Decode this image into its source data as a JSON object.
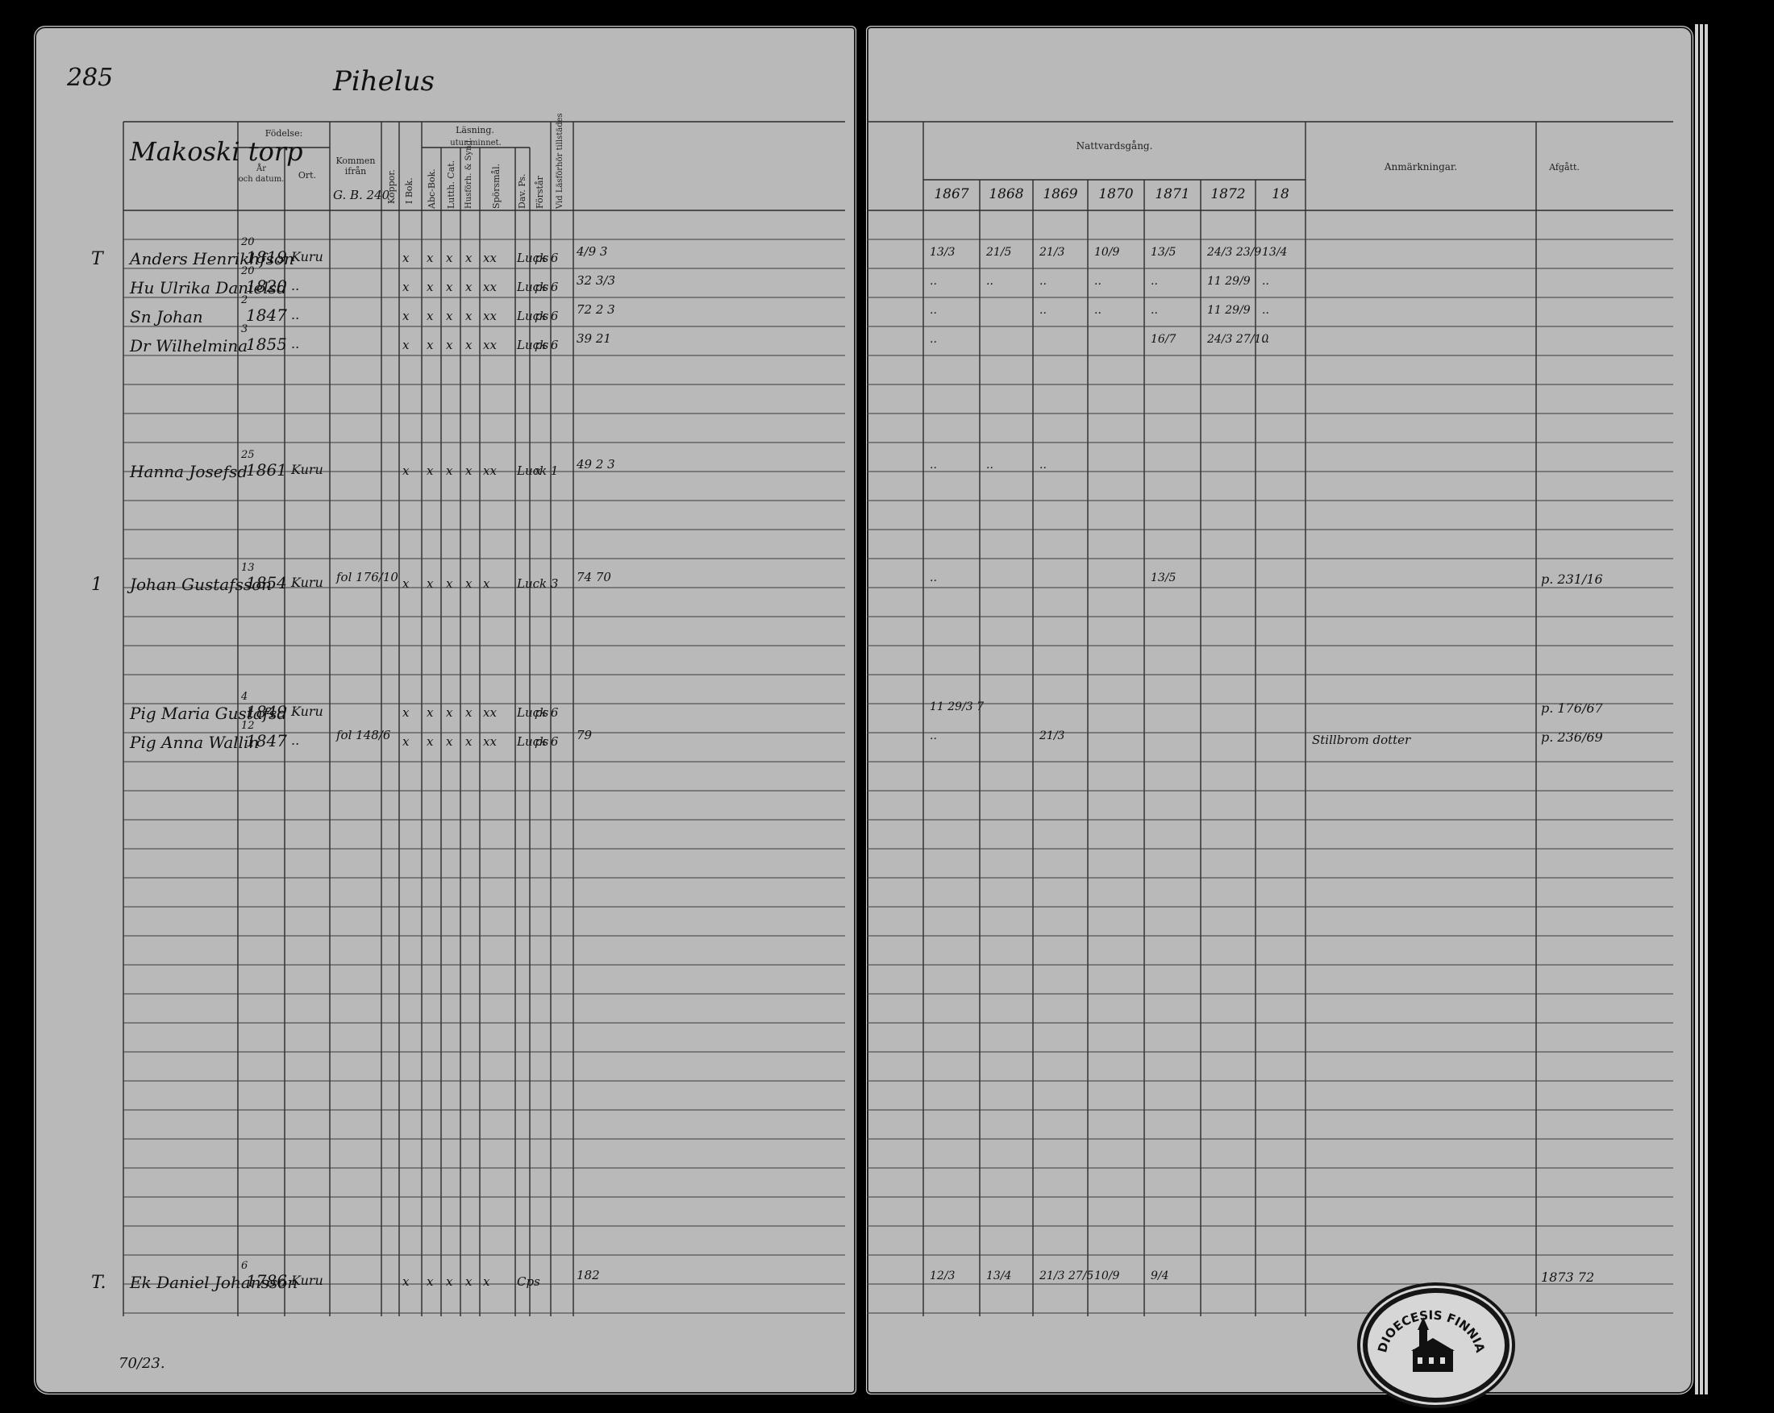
{
  "left_page": {
    "page_number": "285",
    "parish": "Pihelus",
    "place": "Makoski torp",
    "headers": {
      "fodelse": "Födelse:",
      "ar_datum": "År\noch datum.",
      "ort": "Ort.",
      "kommen": "Kommen ifrån",
      "kommen_note": "G. B. 240",
      "koppor": "Koppor.",
      "lasning": "Läsning.",
      "utur_minnet": "utur minnet.",
      "i_bok": "I Bok.",
      "abc_bok": "Abc-Bok.",
      "lutth_cat": "Lutth. Cat.",
      "husfoll": "Husförh. & Synd.",
      "sporsmal": "Spörsmål.",
      "dav_ps": "Dav. Ps.",
      "forstar": "Förstår",
      "vid_lasforhor": "Vid Läsförhör tillstädes"
    },
    "rows": [
      {
        "mark": "T",
        "name": "Anders Henrikhfson",
        "birth_day": "20",
        "birth_year": "1819",
        "place": "Kuru",
        "vals": [
          "x",
          "x",
          "x",
          "x",
          "xx",
          "Luck 6",
          "ps"
        ],
        "attend": "4/9 3"
      },
      {
        "mark": "",
        "name": "Hu Ulrika Danielsd",
        "birth_day": "20",
        "birth_year": "1820",
        "place": "..",
        "vals": [
          "x",
          "x",
          "x",
          "x",
          "xx",
          "Luck 6",
          "ps"
        ],
        "attend": "32 3/3"
      },
      {
        "mark": "",
        "name": "Sn Johan",
        "birth_day": "2",
        "birth_year": "1847",
        "place": "..",
        "vals": [
          "x",
          "x",
          "x",
          "x",
          "xx",
          "Luck 6",
          "ps"
        ],
        "attend": "72 2 3"
      },
      {
        "mark": "",
        "name": "Dr Wilhelmina",
        "birth_day": "3",
        "birth_year": "1855",
        "place": "..",
        "vals": [
          "x",
          "x",
          "x",
          "x",
          "xx",
          "Luck 6",
          "ps"
        ],
        "attend": "39 21"
      },
      {
        "mark": "",
        "name": "Hanna Josefsd",
        "birth_day": "25",
        "birth_year": "1861",
        "place": "Kuru",
        "vals": [
          "x",
          "x",
          "x",
          "x",
          "xx",
          "Luck 1",
          "x"
        ],
        "attend": "49 2 3"
      },
      {
        "mark": "1",
        "name": "Johan Gustafsson",
        "birth_day": "13",
        "birth_year": "1854",
        "place": "Kuru",
        "kommen": "fol 176/10",
        "vals": [
          "x",
          "x",
          "x",
          "x",
          "x",
          "Luck 3",
          ""
        ],
        "attend": "74 70"
      },
      {
        "mark": "",
        "name": "Pig Maria Gustafsd",
        "birth_day": "4",
        "birth_year": "1849",
        "place": "Kuru",
        "vals": [
          "x",
          "x",
          "x",
          "x",
          "xx",
          "Luck 6",
          "ps"
        ],
        "attend": ""
      },
      {
        "mark": "",
        "name": "Pig Anna Wallin",
        "birth_day": "12",
        "birth_year": "1847",
        "place": "..",
        "kommen": "fol 148/6",
        "vals": [
          "x",
          "x",
          "x",
          "x",
          "xx",
          "Luck 6",
          "ps"
        ],
        "attend": "79"
      },
      {
        "mark": "T.",
        "name": "Ek Daniel Johansson",
        "birth_day": "6",
        "birth_year": "1786",
        "place": "Kuru",
        "vals": [
          "x",
          "x",
          "x",
          "x",
          "x",
          "Cps",
          ""
        ],
        "attend": "182"
      }
    ],
    "footer_note": "70/23."
  },
  "right_page": {
    "headers": {
      "nattvardsgang": "Nattvardsgång.",
      "anmarkningar": "Anmärkningar.",
      "afgatt": "Afgått."
    },
    "years": [
      "1867",
      "1868",
      "1869",
      "1870",
      "1871",
      "1872",
      "18"
    ],
    "entries": [
      {
        "cols": [
          "13/3",
          "21/5",
          "21/3",
          "10/9",
          "13/5",
          "24/3 23/9",
          "13/4"
        ]
      },
      {
        "cols": [
          "..",
          "..",
          "..",
          "..",
          "..",
          "11 29/9",
          ".."
        ]
      },
      {
        "cols": [
          "..",
          "",
          "..",
          "..",
          "..",
          "11 29/9",
          ".."
        ]
      },
      {
        "cols": [
          "..",
          "",
          "",
          "",
          "16/7",
          "24/3 27/10",
          ".."
        ]
      },
      {
        "cols": [
          "..",
          "..",
          "..",
          "",
          "",
          "",
          ""
        ]
      },
      {
        "cols": [
          "..",
          "",
          "",
          "",
          "13/5",
          "",
          ""
        ],
        "afgatt": "p. 231/16"
      },
      {
        "cols": [
          "11 29/3 7",
          "",
          "",
          "",
          "",
          "",
          ""
        ],
        "afgatt": "p. 176/67"
      },
      {
        "cols": [
          "..",
          "",
          "21/3",
          "",
          "",
          "",
          ""
        ],
        "note": "Stillbrom dotter",
        "afgatt": "p. 236/69"
      },
      {
        "cols": [
          "12/3",
          "13/4",
          "21/3 27/5",
          "10/9",
          "9/4",
          "",
          ""
        ],
        "afgatt": "1873 72"
      }
    ]
  },
  "stamp": {
    "text": "DIOECESIS FINNIA",
    "emblem": "church-emblem"
  }
}
